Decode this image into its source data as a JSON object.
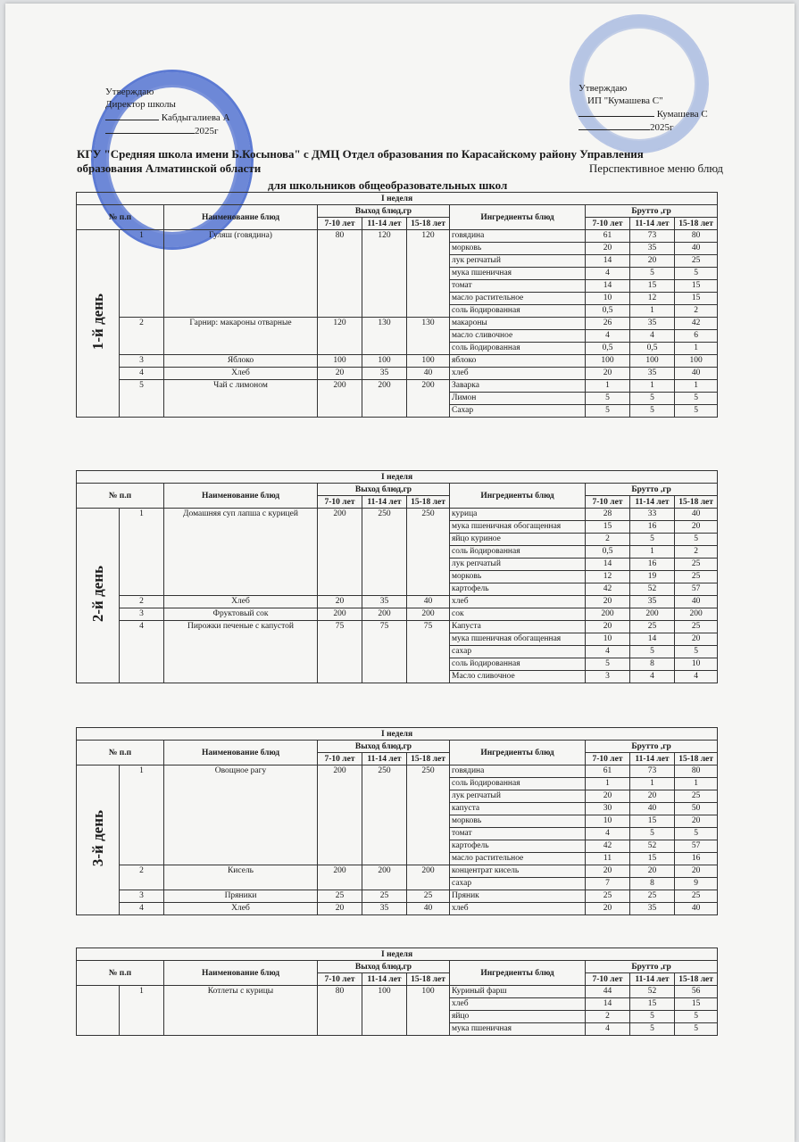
{
  "header": {
    "left": [
      "Утверждаю",
      "Директор школы",
      "Кабдыгалиева А",
      "2025г"
    ],
    "right": [
      "Утверждаю",
      "ИП \"Кумашева С\"",
      "Кумашева С",
      "2025г"
    ],
    "title": [
      "КГУ \"Средняя школа имени Б.Косынова\" с ДМЦ Отдел образования по Карасайскому району Управления",
      "образования Алматинской области"
    ],
    "subtitle": "Перспективное меню блюд",
    "subtitle2": "для школьников общеобразовательных школ"
  },
  "columns": {
    "week": "I неделя",
    "number": "№ п.п",
    "name": "Наименование блюд",
    "output": "Выход блюд,гр",
    "ingredients": "Ингредиенты  блюд",
    "gross": "Брутто ,гр",
    "ages": [
      "7-10 лет",
      "11-14 лет",
      "15-18 лет"
    ]
  },
  "days": [
    {
      "label": "1-й день",
      "dishes": [
        {
          "number": "1",
          "name": "Гуляш (говядина)",
          "output": [
            "80",
            "120",
            "120"
          ],
          "ingredients": [
            {
              "name": "говядина",
              "gross": [
                "61",
                "73",
                "80"
              ]
            },
            {
              "name": "морковь",
              "gross": [
                "20",
                "35",
                "40"
              ]
            },
            {
              "name": "лук репчатый",
              "gross": [
                "14",
                "20",
                "25"
              ]
            },
            {
              "name": "мука пшеничная",
              "gross": [
                "4",
                "5",
                "5"
              ]
            },
            {
              "name": "томат",
              "gross": [
                "14",
                "15",
                "15"
              ]
            },
            {
              "name": "масло растительное",
              "gross": [
                "10",
                "12",
                "15"
              ]
            },
            {
              "name": "соль йодированная",
              "gross": [
                "0,5",
                "1",
                "2"
              ]
            }
          ]
        },
        {
          "number": "2",
          "name": "Гарнир: макароны отварные",
          "output": [
            "120",
            "130",
            "130"
          ],
          "ingredients": [
            {
              "name": "макароны",
              "gross": [
                "26",
                "35",
                "42"
              ]
            },
            {
              "name": "масло сливочное",
              "gross": [
                "4",
                "4",
                "6"
              ]
            },
            {
              "name": "соль йодированная",
              "gross": [
                "0,5",
                "0,5",
                "1"
              ]
            }
          ]
        },
        {
          "number": "3",
          "name": "Яблоко",
          "output": [
            "100",
            "100",
            "100"
          ],
          "ingredients": [
            {
              "name": "яблоко",
              "gross": [
                "100",
                "100",
                "100"
              ]
            }
          ]
        },
        {
          "number": "4",
          "name": "Хлеб",
          "output": [
            "20",
            "35",
            "40"
          ],
          "ingredients": [
            {
              "name": "хлеб",
              "gross": [
                "20",
                "35",
                "40"
              ]
            }
          ]
        },
        {
          "number": "5",
          "name": "Чай с лимоном",
          "output": [
            "200",
            "200",
            "200"
          ],
          "ingredients": [
            {
              "name": "Заварка",
              "gross": [
                "1",
                "1",
                "1"
              ]
            },
            {
              "name": "Лимон",
              "gross": [
                "5",
                "5",
                "5"
              ]
            },
            {
              "name": "Сахар",
              "gross": [
                "5",
                "5",
                "5"
              ]
            }
          ]
        }
      ]
    },
    {
      "label": "2-й день",
      "dishes": [
        {
          "number": "1",
          "name": "Домашняя суп лапша с курицей",
          "output": [
            "200",
            "250",
            "250"
          ],
          "ingredients": [
            {
              "name": "курица",
              "gross": [
                "28",
                "33",
                "40"
              ]
            },
            {
              "name": "мука пшеничная обогащенная",
              "gross": [
                "15",
                "16",
                "20"
              ]
            },
            {
              "name": "яйцо куриное",
              "gross": [
                "2",
                "5",
                "5"
              ]
            },
            {
              "name": "соль йодированная",
              "gross": [
                "0,5",
                "1",
                "2"
              ]
            },
            {
              "name": "лук репчатый",
              "gross": [
                "14",
                "16",
                "25"
              ]
            },
            {
              "name": "морковь",
              "gross": [
                "12",
                "19",
                "25"
              ]
            },
            {
              "name": "картофель",
              "gross": [
                "42",
                "52",
                "57"
              ]
            }
          ]
        },
        {
          "number": "2",
          "name": "Хлеб",
          "output": [
            "20",
            "35",
            "40"
          ],
          "ingredients": [
            {
              "name": "хлеб",
              "gross": [
                "20",
                "35",
                "40"
              ]
            }
          ]
        },
        {
          "number": "3",
          "name": "Фруктовый сок",
          "output": [
            "200",
            "200",
            "200"
          ],
          "ingredients": [
            {
              "name": "сок",
              "gross": [
                "200",
                "200",
                "200"
              ]
            }
          ]
        },
        {
          "number": "4",
          "name": "Пирожки печеные с капустой",
          "output": [
            "75",
            "75",
            "75"
          ],
          "ingredients": [
            {
              "name": "Капуста",
              "gross": [
                "20",
                "25",
                "25"
              ]
            },
            {
              "name": "мука пшеничная обогащенная",
              "gross": [
                "10",
                "14",
                "20"
              ]
            },
            {
              "name": "сахар",
              "gross": [
                "4",
                "5",
                "5"
              ]
            },
            {
              "name": "соль йодированная",
              "gross": [
                "5",
                "8",
                "10"
              ]
            },
            {
              "name": "Масло сливочное",
              "gross": [
                "3",
                "4",
                "4"
              ]
            }
          ]
        }
      ]
    },
    {
      "label": "3-й день",
      "dishes": [
        {
          "number": "1",
          "name": "Овощное рагу",
          "output": [
            "200",
            "250",
            "250"
          ],
          "ingredients": [
            {
              "name": "говядина",
              "gross": [
                "61",
                "73",
                "80"
              ]
            },
            {
              "name": "соль йодированная",
              "gross": [
                "1",
                "1",
                "1"
              ]
            },
            {
              "name": "лук репчатый",
              "gross": [
                "20",
                "20",
                "25"
              ]
            },
            {
              "name": "капуста",
              "gross": [
                "30",
                "40",
                "50"
              ]
            },
            {
              "name": "морковь",
              "gross": [
                "10",
                "15",
                "20"
              ]
            },
            {
              "name": "томат",
              "gross": [
                "4",
                "5",
                "5"
              ]
            },
            {
              "name": "картофель",
              "gross": [
                "42",
                "52",
                "57"
              ]
            },
            {
              "name": "масло растительное",
              "gross": [
                "11",
                "15",
                "16"
              ]
            }
          ]
        },
        {
          "number": "2",
          "name": "Кисель",
          "output": [
            "200",
            "200",
            "200"
          ],
          "ingredients": [
            {
              "name": "концентрат кисель",
              "gross": [
                "20",
                "20",
                "20"
              ]
            },
            {
              "name": "сахар",
              "gross": [
                "7",
                "8",
                "9"
              ]
            }
          ]
        },
        {
          "number": "3",
          "name": "Пряники",
          "output": [
            "25",
            "25",
            "25"
          ],
          "ingredients": [
            {
              "name": "Пряник",
              "gross": [
                "25",
                "25",
                "25"
              ]
            }
          ]
        },
        {
          "number": "4",
          "name": "Хлеб",
          "output": [
            "20",
            "35",
            "40"
          ],
          "ingredients": [
            {
              "name": "хлеб",
              "gross": [
                "20",
                "35",
                "40"
              ]
            }
          ]
        }
      ]
    },
    {
      "dishes": [
        {
          "number": "1",
          "name": "Котлеты с курицы",
          "output": [
            "80",
            "100",
            "100"
          ],
          "ingredients": [
            {
              "name": "Куриный фарш",
              "gross": [
                "44",
                "52",
                "56"
              ]
            },
            {
              "name": "хлеб",
              "gross": [
                "14",
                "15",
                "15"
              ]
            },
            {
              "name": "яйцо",
              "gross": [
                "2",
                "5",
                "5"
              ]
            },
            {
              "name": "мука пшеничная",
              "gross": [
                "4",
                "5",
                "5"
              ]
            }
          ]
        }
      ]
    }
  ]
}
